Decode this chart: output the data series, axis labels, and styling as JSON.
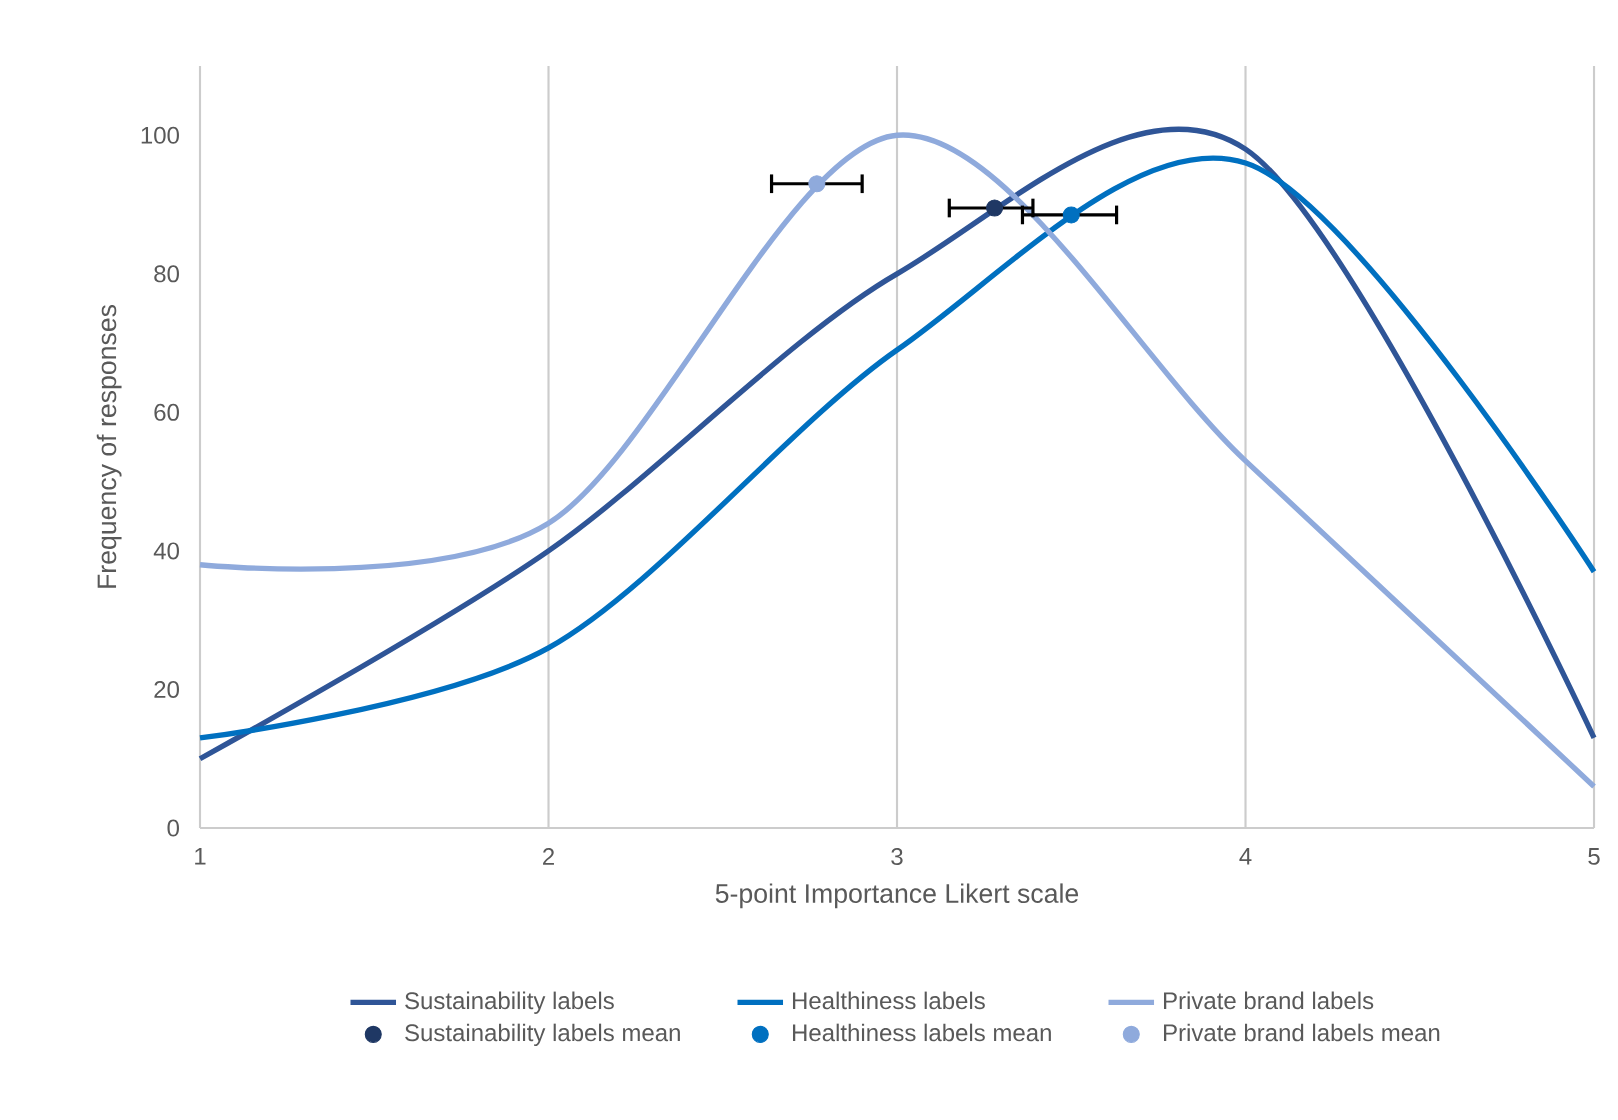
{
  "chart_data": {
    "type": "line",
    "xlabel": "5-point Importance Likert scale",
    "ylabel": "Frequency of responses",
    "xlim": [
      1,
      5
    ],
    "ylim": [
      0,
      110
    ],
    "xticks": [
      1,
      2,
      3,
      4,
      5
    ],
    "yticks": [
      0,
      20,
      40,
      60,
      80,
      100
    ],
    "grid": "x",
    "legend": "bottom",
    "series": [
      {
        "name": "Sustainability labels",
        "color": "#2f5597",
        "marker": "none",
        "line_style": "solid",
        "x": [
          1,
          2,
          3,
          4,
          5
        ],
        "values": [
          10,
          40,
          80,
          98,
          13
        ]
      },
      {
        "name": "Healthiness labels",
        "color": "#0070c0",
        "marker": "none",
        "line_style": "solid",
        "x": [
          1,
          2,
          3,
          4,
          5
        ],
        "values": [
          13,
          26,
          69,
          96,
          37
        ]
      },
      {
        "name": "Private brand labels",
        "color": "#8faadc",
        "marker": "none",
        "line_style": "solid",
        "x": [
          1,
          2,
          3,
          4,
          5
        ],
        "values": [
          38,
          44,
          100,
          53,
          6
        ]
      },
      {
        "name": "Sustainability labels mean",
        "type": "scatter",
        "color": "#1f3864",
        "marker": "circle",
        "x": [
          3.28
        ],
        "values": [
          89.5
        ],
        "xerrors": [
          [
            3.15,
            3.39
          ]
        ]
      },
      {
        "name": "Healthiness labels mean",
        "type": "scatter",
        "color": "#0070c0",
        "marker": "circle",
        "x": [
          3.5
        ],
        "values": [
          88.5
        ],
        "xerrors": [
          [
            3.36,
            3.63
          ]
        ]
      },
      {
        "name": "Private brand labels mean",
        "type": "scatter",
        "color": "#8faadc",
        "marker": "circle",
        "x": [
          2.77
        ],
        "values": [
          93
        ],
        "xerrors": [
          [
            2.64,
            2.9
          ]
        ]
      }
    ]
  }
}
